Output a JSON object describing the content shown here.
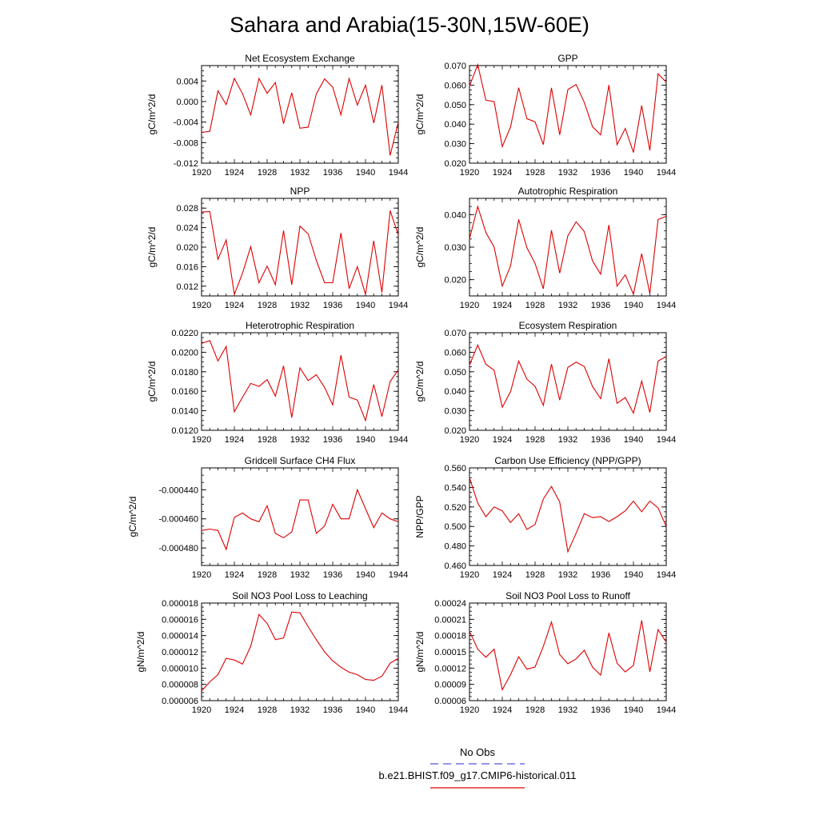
{
  "figure": {
    "title": "Sahara and Arabia(15-30N,15W-60E)"
  },
  "legend": {
    "obs_label": "No Obs",
    "obs_color": "#5555dd",
    "model_label": "b.e21.BHIST.f09_g17.CMIP6-historical.011",
    "model_color": "#dd0000"
  },
  "chart_data": [
    {
      "type": "line",
      "title": "Net Ecosystem Exchange",
      "ylabel": "gC/m^2/d",
      "xlim": [
        1920,
        1944
      ],
      "ylim": [
        -0.012,
        0.007
      ],
      "xticks": [
        "1920",
        "1924",
        "1928",
        "1932",
        "1936",
        "1940",
        "1944"
      ],
      "yticks": [
        {
          "v": -0.012,
          "label": "-0.012"
        },
        {
          "v": -0.008,
          "label": "-0.008"
        },
        {
          "v": -0.004,
          "label": "-0.004"
        },
        {
          "v": 0.0,
          "label": "0.000"
        },
        {
          "v": 0.004,
          "label": "0.004"
        }
      ],
      "x": [
        1920,
        1921,
        1922,
        1923,
        1924,
        1925,
        1926,
        1927,
        1928,
        1929,
        1930,
        1931,
        1932,
        1933,
        1934,
        1935,
        1936,
        1937,
        1938,
        1939,
        1940,
        1941,
        1942,
        1943,
        1944
      ],
      "y": [
        -0.006,
        -0.0058,
        0.0021,
        -0.0006,
        0.0045,
        0.0015,
        -0.0026,
        0.0045,
        0.0016,
        0.0037,
        -0.0043,
        0.0017,
        -0.0052,
        -0.005,
        0.0015,
        0.0044,
        0.0028,
        -0.0026,
        0.0045,
        -0.0007,
        0.0032,
        -0.0042,
        0.0032,
        -0.0105,
        -0.004
      ]
    },
    {
      "type": "line",
      "title": "GPP",
      "ylabel": "gC/m^2/d",
      "xlim": [
        1920,
        1944
      ],
      "ylim": [
        0.02,
        0.07
      ],
      "xticks": [
        "1920",
        "1924",
        "1928",
        "1932",
        "1936",
        "1940",
        "1944"
      ],
      "yticks": [
        {
          "v": 0.02,
          "label": "0.020"
        },
        {
          "v": 0.03,
          "label": "0.030"
        },
        {
          "v": 0.04,
          "label": "0.040"
        },
        {
          "v": 0.05,
          "label": "0.050"
        },
        {
          "v": 0.06,
          "label": "0.060"
        },
        {
          "v": 0.07,
          "label": "0.070"
        }
      ],
      "x": [
        1920,
        1921,
        1922,
        1923,
        1924,
        1925,
        1926,
        1927,
        1928,
        1929,
        1930,
        1931,
        1932,
        1933,
        1934,
        1935,
        1936,
        1937,
        1938,
        1939,
        1940,
        1941,
        1942,
        1943,
        1944
      ],
      "y": [
        0.0595,
        0.0705,
        0.0523,
        0.0515,
        0.0285,
        0.0385,
        0.0587,
        0.0428,
        0.0412,
        0.0295,
        0.0586,
        0.0345,
        0.0577,
        0.0603,
        0.0512,
        0.0387,
        0.0345,
        0.06,
        0.0295,
        0.0378,
        0.0255,
        0.0495,
        0.0265,
        0.0658,
        0.0615
      ]
    },
    {
      "type": "line",
      "title": "NPP",
      "ylabel": "gC/m^2/d",
      "xlim": [
        1920,
        1944
      ],
      "ylim": [
        0.01,
        0.03
      ],
      "xticks": [
        "1920",
        "1924",
        "1928",
        "1932",
        "1936",
        "1940",
        "1944"
      ],
      "yticks": [
        {
          "v": 0.012,
          "label": "0.012"
        },
        {
          "v": 0.016,
          "label": "0.016"
        },
        {
          "v": 0.02,
          "label": "0.020"
        },
        {
          "v": 0.024,
          "label": "0.024"
        },
        {
          "v": 0.028,
          "label": "0.028"
        }
      ],
      "x": [
        1920,
        1921,
        1922,
        1923,
        1924,
        1925,
        1926,
        1927,
        1928,
        1929,
        1930,
        1931,
        1932,
        1933,
        1934,
        1935,
        1936,
        1937,
        1938,
        1939,
        1940,
        1941,
        1942,
        1943,
        1944
      ],
      "y": [
        0.0272,
        0.0273,
        0.0175,
        0.0215,
        0.0103,
        0.0147,
        0.0201,
        0.0127,
        0.0161,
        0.0123,
        0.0234,
        0.0123,
        0.0243,
        0.0227,
        0.0173,
        0.0127,
        0.0127,
        0.0229,
        0.0115,
        0.016,
        0.0103,
        0.0213,
        0.0107,
        0.0275,
        0.0225
      ]
    },
    {
      "type": "line",
      "title": "Autotrophic Respiration",
      "ylabel": "gC/m^2/d",
      "xlim": [
        1920,
        1944
      ],
      "ylim": [
        0.015,
        0.045
      ],
      "xticks": [
        "1920",
        "1924",
        "1928",
        "1932",
        "1936",
        "1940",
        "1944"
      ],
      "yticks": [
        {
          "v": 0.02,
          "label": "0.020"
        },
        {
          "v": 0.03,
          "label": "0.030"
        },
        {
          "v": 0.04,
          "label": "0.040"
        }
      ],
      "x": [
        1920,
        1921,
        1922,
        1923,
        1924,
        1925,
        1926,
        1927,
        1928,
        1929,
        1930,
        1931,
        1932,
        1933,
        1934,
        1935,
        1936,
        1937,
        1938,
        1939,
        1940,
        1941,
        1942,
        1943,
        1944
      ],
      "y": [
        0.0325,
        0.0425,
        0.0345,
        0.03,
        0.018,
        0.0242,
        0.0385,
        0.0298,
        0.025,
        0.0172,
        0.0352,
        0.022,
        0.0335,
        0.0378,
        0.0348,
        0.0258,
        0.0217,
        0.0368,
        0.018,
        0.0215,
        0.0155,
        0.028,
        0.0157,
        0.0385,
        0.0395
      ]
    },
    {
      "type": "line",
      "title": "Heterotrophic Respiration",
      "ylabel": "gC/m^2/d",
      "xlim": [
        1920,
        1944
      ],
      "ylim": [
        0.012,
        0.022
      ],
      "xticks": [
        "1920",
        "1924",
        "1928",
        "1932",
        "1936",
        "1940",
        "1944"
      ],
      "yticks": [
        {
          "v": 0.012,
          "label": "0.0120"
        },
        {
          "v": 0.014,
          "label": "0.0140"
        },
        {
          "v": 0.016,
          "label": "0.0160"
        },
        {
          "v": 0.018,
          "label": "0.0180"
        },
        {
          "v": 0.02,
          "label": "0.0200"
        },
        {
          "v": 0.022,
          "label": "0.0220"
        }
      ],
      "x": [
        1920,
        1921,
        1922,
        1923,
        1924,
        1925,
        1926,
        1927,
        1928,
        1929,
        1930,
        1931,
        1932,
        1933,
        1934,
        1935,
        1936,
        1937,
        1938,
        1939,
        1940,
        1941,
        1942,
        1943,
        1944
      ],
      "y": [
        0.0209,
        0.0212,
        0.0191,
        0.0206,
        0.0139,
        0.0154,
        0.0168,
        0.0165,
        0.0172,
        0.0155,
        0.0186,
        0.0133,
        0.0184,
        0.0171,
        0.0177,
        0.0164,
        0.0146,
        0.0197,
        0.0154,
        0.0151,
        0.013,
        0.0167,
        0.0134,
        0.017,
        0.0182
      ]
    },
    {
      "type": "line",
      "title": "Ecosystem Respiration",
      "ylabel": "gC/m^2/d",
      "xlim": [
        1920,
        1944
      ],
      "ylim": [
        0.02,
        0.07
      ],
      "xticks": [
        "1920",
        "1924",
        "1928",
        "1932",
        "1936",
        "1940",
        "1944"
      ],
      "yticks": [
        {
          "v": 0.02,
          "label": "0.020"
        },
        {
          "v": 0.03,
          "label": "0.030"
        },
        {
          "v": 0.04,
          "label": "0.040"
        },
        {
          "v": 0.05,
          "label": "0.050"
        },
        {
          "v": 0.06,
          "label": "0.060"
        },
        {
          "v": 0.07,
          "label": "0.070"
        }
      ],
      "x": [
        1920,
        1921,
        1922,
        1923,
        1924,
        1925,
        1926,
        1927,
        1928,
        1929,
        1930,
        1931,
        1932,
        1933,
        1934,
        1935,
        1936,
        1937,
        1938,
        1939,
        1940,
        1941,
        1942,
        1943,
        1944
      ],
      "y": [
        0.0533,
        0.0637,
        0.0538,
        0.0508,
        0.0318,
        0.0397,
        0.0555,
        0.0462,
        0.0425,
        0.0328,
        0.0539,
        0.0355,
        0.0522,
        0.0549,
        0.0527,
        0.0425,
        0.0362,
        0.0567,
        0.0338,
        0.0368,
        0.0288,
        0.0452,
        0.0292,
        0.0555,
        0.0578
      ]
    },
    {
      "type": "line",
      "title": "Gridcell Surface CH4 Flux",
      "ylabel": "gC/m^2/d",
      "xlim": [
        1920,
        1944
      ],
      "ylim": [
        -0.000492,
        -0.000425
      ],
      "xticks": [
        "1920",
        "1924",
        "1928",
        "1932",
        "1936",
        "1940",
        "1944"
      ],
      "yticks": [
        {
          "v": -0.00048,
          "label": "-0.000480"
        },
        {
          "v": -0.00046,
          "label": "-0.000460"
        },
        {
          "v": -0.00044,
          "label": "-0.000440"
        }
      ],
      "x": [
        1920,
        1921,
        1922,
        1923,
        1924,
        1925,
        1926,
        1927,
        1928,
        1929,
        1930,
        1931,
        1932,
        1933,
        1934,
        1935,
        1936,
        1937,
        1938,
        1939,
        1940,
        1941,
        1942,
        1943,
        1944
      ],
      "y": [
        -0.000468,
        -0.000467,
        -0.000468,
        -0.000481,
        -0.000459,
        -0.000456,
        -0.00046,
        -0.000462,
        -0.000451,
        -0.00047,
        -0.000473,
        -0.000469,
        -0.000447,
        -0.000447,
        -0.00047,
        -0.000465,
        -0.00045,
        -0.00046,
        -0.00046,
        -0.00044,
        -0.000453,
        -0.000466,
        -0.000456,
        -0.00046,
        -0.000462
      ]
    },
    {
      "type": "line",
      "title": "Carbon Use Efficiency (NPP/GPP)",
      "ylabel": "NPP/GPP",
      "xlim": [
        1920,
        1944
      ],
      "ylim": [
        0.46,
        0.56
      ],
      "xticks": [
        "1920",
        "1924",
        "1928",
        "1932",
        "1936",
        "1940",
        "1944"
      ],
      "yticks": [
        {
          "v": 0.46,
          "label": "0.460"
        },
        {
          "v": 0.48,
          "label": "0.480"
        },
        {
          "v": 0.5,
          "label": "0.500"
        },
        {
          "v": 0.52,
          "label": "0.520"
        },
        {
          "v": 0.54,
          "label": "0.540"
        },
        {
          "v": 0.56,
          "label": "0.560"
        }
      ],
      "x": [
        1920,
        1921,
        1922,
        1923,
        1924,
        1925,
        1926,
        1927,
        1928,
        1929,
        1930,
        1931,
        1932,
        1933,
        1934,
        1935,
        1936,
        1937,
        1938,
        1939,
        1940,
        1941,
        1942,
        1943,
        1944
      ],
      "y": [
        0.55,
        0.524,
        0.51,
        0.52,
        0.516,
        0.504,
        0.513,
        0.497,
        0.502,
        0.528,
        0.541,
        0.525,
        0.474,
        0.493,
        0.513,
        0.509,
        0.51,
        0.505,
        0.51,
        0.516,
        0.526,
        0.515,
        0.526,
        0.519,
        0.5
      ]
    },
    {
      "type": "line",
      "title": "Soil NO3 Pool Loss to Leaching",
      "ylabel": "gN/m^2/d",
      "xlim": [
        1920,
        1944
      ],
      "ylim": [
        6e-06,
        1.8e-05
      ],
      "xticks": [
        "1920",
        "1924",
        "1928",
        "1932",
        "1936",
        "1940",
        "1944"
      ],
      "yticks": [
        {
          "v": 6e-06,
          "label": "0.000006"
        },
        {
          "v": 8e-06,
          "label": "0.000008"
        },
        {
          "v": 1e-05,
          "label": "0.000010"
        },
        {
          "v": 1.2e-05,
          "label": "0.000012"
        },
        {
          "v": 1.4e-05,
          "label": "0.000014"
        },
        {
          "v": 1.6e-05,
          "label": "0.000016"
        },
        {
          "v": 1.8e-05,
          "label": "0.000018"
        }
      ],
      "x": [
        1920,
        1921,
        1922,
        1923,
        1924,
        1925,
        1926,
        1927,
        1928,
        1929,
        1930,
        1931,
        1932,
        1933,
        1934,
        1935,
        1936,
        1937,
        1938,
        1939,
        1940,
        1941,
        1942,
        1943,
        1944
      ],
      "y": [
        7.2e-06,
        8.3e-06,
        9.2e-06,
        1.12e-05,
        1.1e-05,
        1.05e-05,
        1.27e-05,
        1.66e-05,
        1.55e-05,
        1.35e-05,
        1.37e-05,
        1.69e-05,
        1.68e-05,
        1.51e-05,
        1.35e-05,
        1.2e-05,
        1.09e-05,
        1.01e-05,
        9.5e-06,
        9.2e-06,
        8.6e-06,
        8.5e-06,
        9e-06,
        1.06e-05,
        1.12e-05
      ]
    },
    {
      "type": "line",
      "title": "Soil NO3 Pool Loss to Runoff",
      "ylabel": "gN/m^2/d",
      "xlim": [
        1920,
        1944
      ],
      "ylim": [
        6e-05,
        0.00024
      ],
      "xticks": [
        "1920",
        "1924",
        "1928",
        "1932",
        "1936",
        "1940",
        "1944"
      ],
      "yticks": [
        {
          "v": 6e-05,
          "label": "0.00006"
        },
        {
          "v": 9e-05,
          "label": "0.00009"
        },
        {
          "v": 0.00012,
          "label": "0.00012"
        },
        {
          "v": 0.00015,
          "label": "0.00015"
        },
        {
          "v": 0.00018,
          "label": "0.00018"
        },
        {
          "v": 0.00021,
          "label": "0.00021"
        },
        {
          "v": 0.00024,
          "label": "0.00024"
        }
      ],
      "x": [
        1920,
        1921,
        1922,
        1923,
        1924,
        1925,
        1926,
        1927,
        1928,
        1929,
        1930,
        1931,
        1932,
        1933,
        1934,
        1935,
        1936,
        1937,
        1938,
        1939,
        1940,
        1941,
        1942,
        1943,
        1944
      ],
      "y": [
        0.000188,
        0.000155,
        0.00014,
        0.000155,
        8e-05,
        0.000108,
        0.000141,
        0.000118,
        0.000122,
        0.00016,
        0.000205,
        0.000145,
        0.000128,
        0.000137,
        0.000153,
        0.000122,
        0.000107,
        0.000185,
        0.000129,
        0.000113,
        0.000125,
        0.000208,
        0.000113,
        0.000191,
        0.000168
      ]
    }
  ]
}
